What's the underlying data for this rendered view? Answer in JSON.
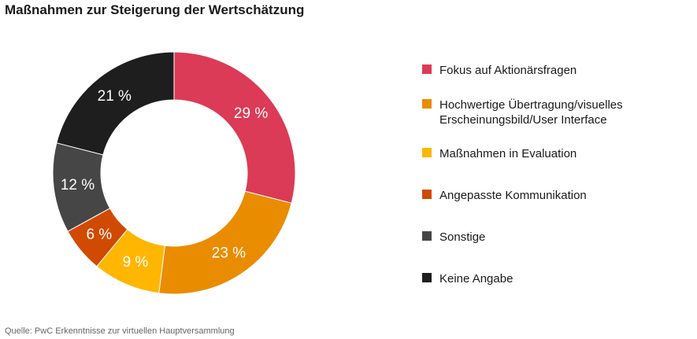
{
  "title": "Maßnahmen zur Steigerung der Wertschätzung",
  "source": "Quelle: PwC Erkenntnisse zur virtuellen Hauptversammlung",
  "chart_data": {
    "type": "pie",
    "subtype": "donut",
    "title": "Maßnahmen zur Steigerung der Wertschätzung",
    "legend_position": "right",
    "start": "top, clockwise",
    "slices": [
      {
        "label": "Fokus auf Aktionärsfragen",
        "value": 29,
        "display": "29 %",
        "color": "#db3b56"
      },
      {
        "label": "Hochwertige Übertragung/visuelles Erscheinungsbild/User Interface",
        "value": 23,
        "display": "23 %",
        "color": "#ea8c00"
      },
      {
        "label": "Maßnahmen in Evaluation",
        "value": 9,
        "display": "9 %",
        "color": "#ffb600"
      },
      {
        "label": "Angepasste Kommunikation",
        "value": 6,
        "display": "6 %",
        "color": "#d04a02"
      },
      {
        "label": "Sonstige",
        "value": 12,
        "display": "12 %",
        "color": "#464646"
      },
      {
        "label": "Keine Angabe",
        "value": 21,
        "display": "21 %",
        "color": "#1e1e1e"
      }
    ]
  },
  "legend": [
    {
      "line1": "Fokus auf Aktionärsfragen",
      "line2": ""
    },
    {
      "line1": "Hochwertige Übertragung/visuelles",
      "line2": "Erscheinungsbild/User Interface"
    },
    {
      "line1": "Maßnahmen in Evaluation",
      "line2": ""
    },
    {
      "line1": "Angepasste Kommunikation",
      "line2": ""
    },
    {
      "line1": "Sonstige",
      "line2": ""
    },
    {
      "line1": "Keine Angabe",
      "line2": ""
    }
  ]
}
